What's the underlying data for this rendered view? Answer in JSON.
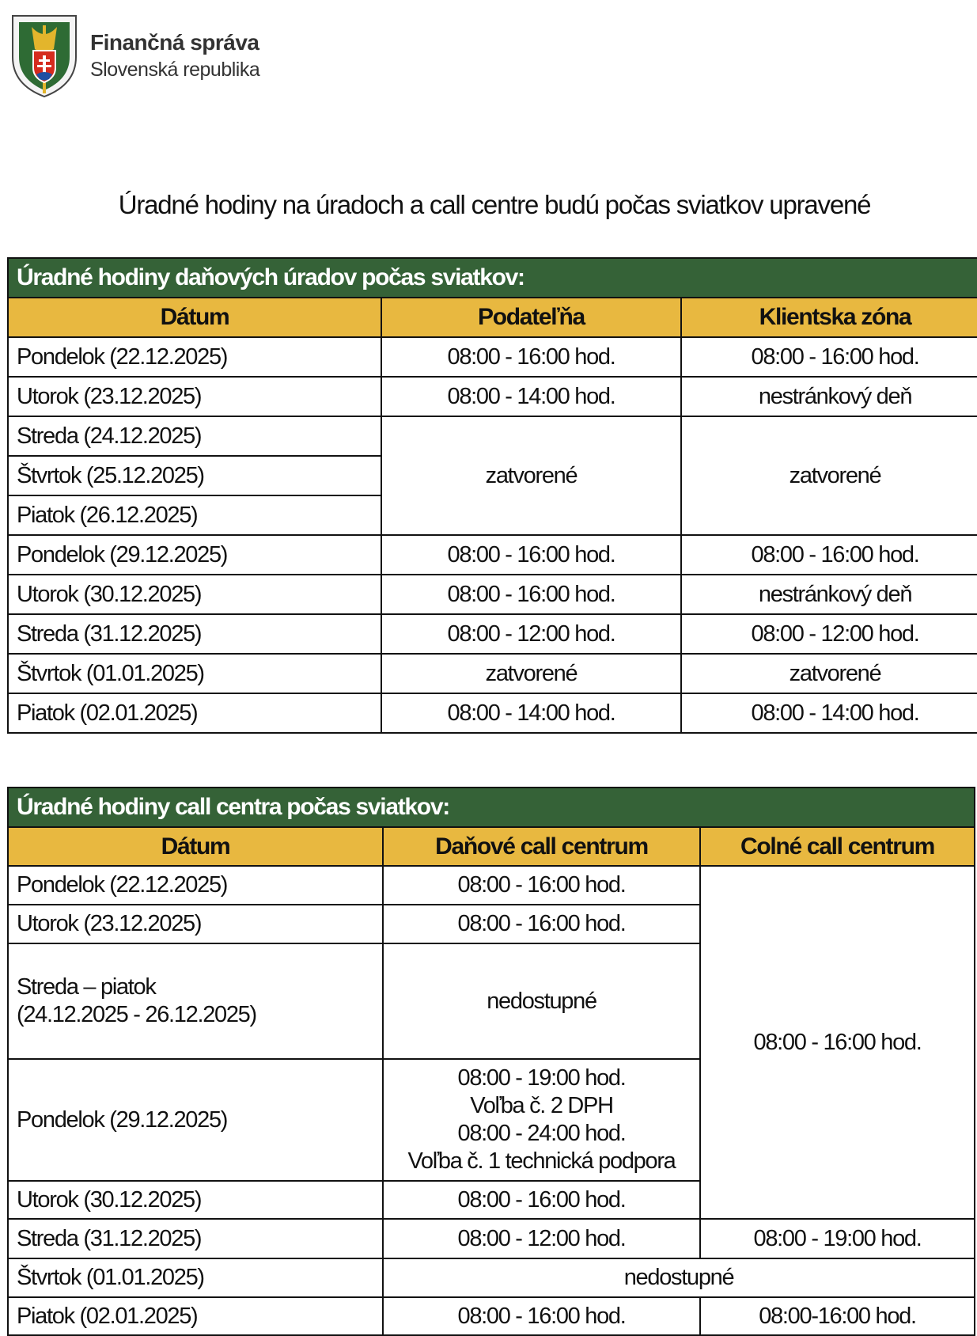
{
  "header": {
    "brand_name": "Finančná správa",
    "brand_sub": "Slovenská republika",
    "logo_text": "FINANČNÁ SPRÁVA SLOVENSKÁ REPUBLIKA"
  },
  "title": "Úradné hodiny na úradoch a call centre budú počas sviatkov upravené",
  "table1": {
    "caption": "Úradné hodiny daňových úradov počas sviatkov:",
    "columns": [
      "Dátum",
      "Podateľňa",
      "Klientska zóna"
    ],
    "rows": [
      [
        "Pondelok (22.12.2025)",
        "08:00 - 16:00 hod.",
        "08:00 - 16:00 hod."
      ],
      [
        "Utorok (23.12.2025)",
        "08:00 - 14:00 hod.",
        "nestránkový deň"
      ],
      [
        "Streda (24.12.2025)",
        "zatvorené",
        "zatvorené"
      ],
      [
        "Štvrtok (25.12.2025)"
      ],
      [
        "Piatok (26.12.2025)"
      ],
      [
        "Pondelok (29.12.2025)",
        "08:00 - 16:00 hod.",
        "08:00 - 16:00 hod."
      ],
      [
        "Utorok (30.12.2025)",
        "08:00 - 16:00 hod.",
        "nestránkový deň"
      ],
      [
        "Streda (31.12.2025)",
        "08:00 - 12:00 hod.",
        "08:00 - 12:00 hod."
      ],
      [
        "Štvrtok (01.01.2025)",
        "zatvorené",
        "zatvorené"
      ],
      [
        "Piatok (02.01.2025)",
        "08:00 - 14:00 hod.",
        "08:00 - 14:00 hod."
      ]
    ]
  },
  "table2": {
    "caption": "Úradné hodiny call centra počas sviatkov:",
    "columns": [
      "Dátum",
      "Daňové call centrum",
      "Colné call centrum"
    ],
    "rows": [
      [
        "Pondelok (22.12.2025)",
        "08:00 - 16:00 hod.",
        "08:00 - 16:00 hod."
      ],
      [
        "Utorok (23.12.2025)",
        "08:00 - 16:00 hod."
      ],
      [
        "Streda – piatok",
        "nedostupné",
        "(24.12.2025 - 26.12.2025)"
      ],
      [
        "Pondelok (29.12.2025)",
        "08:00 - 19:00 hod.",
        "Voľba č. 2 DPH",
        "08:00 - 24:00 hod.",
        "Voľba č. 1 technická podpora"
      ],
      [
        "Utorok (30.12.2025)",
        "08:00 - 16:00 hod."
      ],
      [
        "Streda (31.12.2025)",
        "08:00 - 12:00 hod.",
        "08:00 - 19:00 hod."
      ],
      [
        "Štvrtok (01.01.2025)",
        "nedostupné"
      ],
      [
        "Piatok (02.01.2025)",
        "08:00 - 16:00 hod.",
        "08:00-16:00 hod."
      ]
    ]
  },
  "colors": {
    "caption_bg": "#356237",
    "header_bg": "#e8b840"
  }
}
